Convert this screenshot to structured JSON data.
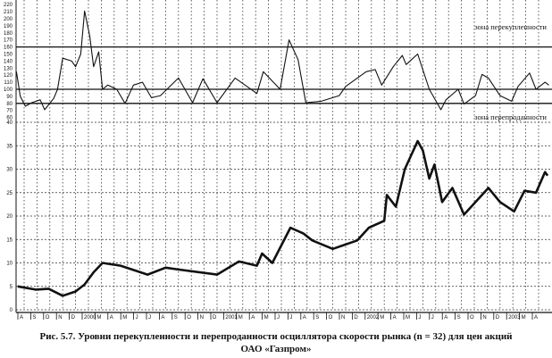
{
  "chart_data": [
    {
      "type": "line",
      "panel": "upper",
      "annotations": {
        "overbought": "зона перекупленности",
        "oversold": "зона перепроданности"
      },
      "reference_lines": [
        160,
        100,
        80
      ],
      "ylim": [
        60,
        225
      ],
      "yticks": [
        60,
        70,
        80,
        90,
        100,
        110,
        120,
        130,
        140,
        150,
        160,
        170,
        180,
        190,
        200,
        210,
        220
      ],
      "xlim": [
        -0.6,
        41
      ],
      "x": [
        -0.6,
        -0.3,
        0.1,
        0.6,
        1.25,
        1.6,
        2.3,
        2.6,
        3.0,
        3.7,
        4.0,
        4.4,
        4.7,
        5.1,
        5.4,
        5.8,
        6.1,
        6.5,
        7.2,
        7.85,
        8.5,
        9.2,
        9.9,
        10.6,
        12.0,
        13.1,
        13.9,
        15.0,
        16.4,
        18.1,
        18.6,
        19.9,
        20.6,
        21.3,
        21.9,
        23.1,
        24.5,
        25.0,
        26.6,
        27.3,
        27.8,
        28.7,
        29.4,
        29.7,
        30.6,
        31.5,
        32.4,
        32.8,
        33.75,
        34.2,
        35.1,
        35.6,
        36.1,
        37.0,
        37.9,
        38.4,
        39.3,
        39.8,
        40.5,
        40.8
      ],
      "values": [
        125,
        90,
        76,
        81,
        85,
        71,
        87,
        100,
        144,
        140,
        132,
        150,
        211,
        176,
        132,
        153,
        100,
        106,
        100,
        80,
        106,
        110,
        88,
        91,
        116,
        81,
        115,
        81,
        116,
        94,
        125,
        100,
        170,
        142,
        81,
        83,
        91,
        104,
        125,
        128,
        106,
        132,
        148,
        135,
        150,
        100,
        71,
        85,
        100,
        79,
        91,
        121,
        116,
        91,
        83,
        104,
        123,
        100,
        110,
        106
      ]
    },
    {
      "type": "line",
      "panel": "lower",
      "ylim": [
        0,
        40
      ],
      "yticks": [
        0,
        5,
        10,
        15,
        20,
        25,
        30,
        35,
        40
      ],
      "xlim": [
        -0.6,
        41
      ],
      "xtick_labels": [
        "A",
        "S",
        "O",
        "N",
        "D",
        "2000",
        "M",
        "A",
        "M",
        "J",
        "J",
        "A",
        "S",
        "O",
        "N",
        "D",
        "2001",
        "M",
        "A",
        "M",
        "J",
        "J",
        "A",
        "S",
        "O",
        "N",
        "D",
        "2002",
        "M",
        "A",
        "M",
        "J",
        "J",
        "A",
        "S",
        "O",
        "N",
        "D",
        "2003",
        "M",
        "A"
      ],
      "x": [
        -0.5,
        0.9,
        1.9,
        3.0,
        4.0,
        4.7,
        5.4,
        6.1,
        7.5,
        8.5,
        9.6,
        11.0,
        12.0,
        15.0,
        16.7,
        18.1,
        18.5,
        19.3,
        20.7,
        21.7,
        22.4,
        24.0,
        25.9,
        26.8,
        28.0,
        28.2,
        28.9,
        29.6,
        30.6,
        31.0,
        31.5,
        31.9,
        32.5,
        33.3,
        34.2,
        35.1,
        36.1,
        37.0,
        38.1,
        38.9,
        39.8,
        40.5,
        40.7
      ],
      "values": [
        5,
        4.3,
        4.5,
        3,
        3.9,
        5.4,
        8,
        10,
        9.4,
        8.5,
        7.5,
        9,
        8.6,
        7.5,
        10.3,
        9.4,
        12,
        10,
        17.5,
        16.3,
        14.8,
        13,
        14.8,
        17.5,
        19,
        24.5,
        22,
        30,
        36,
        34,
        28,
        31,
        23,
        26,
        20.3,
        23,
        26,
        23,
        21,
        25.4,
        25,
        29.4,
        28.6
      ]
    }
  ],
  "caption": {
    "line1": "Рис. 5.7. Уровни перекупленности и перепроданности осциллятора скорости рынка (n = 32) для цен акций",
    "line2": "ОАО «Газпром»"
  }
}
